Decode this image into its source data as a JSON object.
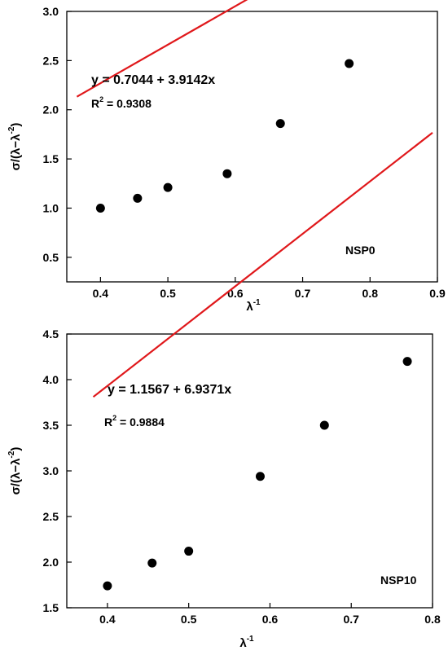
{
  "chart_data": [
    {
      "type": "scatter",
      "xlabel": "λ",
      "xlabel_sup": "-1",
      "ylabel_parts": [
        "σ/(λ−λ",
        "-2",
        ")"
      ],
      "xlim": [
        0.35,
        0.9
      ],
      "ylim": [
        0.25,
        3.0
      ],
      "xticks": [
        0.4,
        0.5,
        0.6,
        0.7,
        0.8,
        0.9
      ],
      "yticks": [
        0.5,
        1.0,
        1.5,
        2.0,
        2.5,
        3.0
      ],
      "series": [
        {
          "x": [
            0.4,
            0.455,
            0.5,
            0.588,
            0.667,
            0.769
          ],
          "y": [
            1.0,
            1.1,
            1.21,
            1.35,
            1.86,
            2.47
          ]
        }
      ],
      "fit": {
        "intercept": 0.7044,
        "slope": 3.9142,
        "x_range": [
          0.365,
          0.808
        ]
      },
      "equation": "y = 0.7044 + 3.9142x",
      "r2_prefix": "R",
      "r2_sup": "2",
      "r2_value": " = 0.9308",
      "sample_label": "NSP0"
    },
    {
      "type": "scatter",
      "xlabel": "λ",
      "xlabel_sup": "-1",
      "ylabel_parts": [
        "σ/(λ−λ",
        "-2",
        ")"
      ],
      "xlim": [
        0.35,
        0.8
      ],
      "ylim": [
        1.5,
        4.5
      ],
      "xticks": [
        0.4,
        0.5,
        0.6,
        0.7,
        0.8
      ],
      "yticks": [
        1.5,
        2.0,
        2.5,
        3.0,
        3.5,
        4.0,
        4.5
      ],
      "series": [
        {
          "x": [
            0.4,
            0.455,
            0.5,
            0.588,
            0.667,
            0.769
          ],
          "y": [
            1.74,
            1.99,
            2.12,
            2.94,
            3.5,
            4.2
          ]
        }
      ],
      "fit": {
        "intercept": 1.1567,
        "slope": 6.9371,
        "x_range": [
          0.3826,
          0.8
        ]
      },
      "equation": "y = 1.1567 + 6.9371x",
      "r2_prefix": "R",
      "r2_sup": "2",
      "r2_value": " = 0.9884",
      "sample_label": "NSP10"
    }
  ]
}
